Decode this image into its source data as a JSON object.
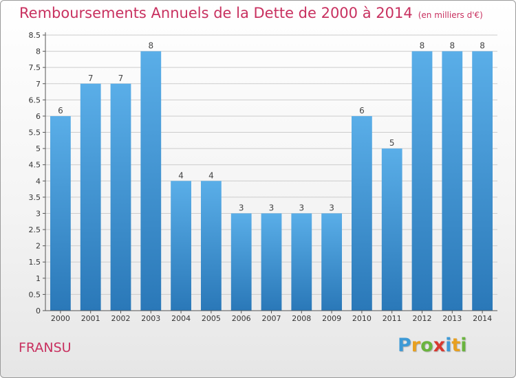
{
  "title": {
    "main": "Remboursements Annuels de la Dette de 2000 à 2014",
    "unit": "(en milliers d'€)"
  },
  "commune": "FRANSU",
  "logo": {
    "text": "Proxiti",
    "letters": [
      {
        "ch": "P",
        "color": "#3e9ad6"
      },
      {
        "ch": "r",
        "color": "#e8a020"
      },
      {
        "ch": "o",
        "color": "#6ab43e"
      },
      {
        "ch": "x",
        "color": "#d8382f"
      },
      {
        "ch": "i",
        "color": "#3e9ad6"
      },
      {
        "ch": "t",
        "color": "#e8a020"
      },
      {
        "ch": "i",
        "color": "#6ab43e"
      }
    ]
  },
  "colors": {
    "title": "#c8305f",
    "bar_top": "#5aaee8",
    "bar_bottom": "#2a78b8",
    "grid": "#cccccc",
    "axis": "#555555"
  },
  "chart_data": {
    "type": "bar",
    "categories": [
      "2000",
      "2001",
      "2002",
      "2003",
      "2004",
      "2005",
      "2006",
      "2007",
      "2008",
      "2009",
      "2010",
      "2011",
      "2012",
      "2013",
      "2014"
    ],
    "values": [
      6,
      7,
      7,
      8,
      4,
      4,
      3,
      3,
      3,
      3,
      6,
      5,
      8,
      8,
      8
    ],
    "data_labels": [
      "6",
      "7",
      "7",
      "8",
      "4",
      "4",
      "3",
      "3",
      "3",
      "3",
      "6",
      "5",
      "8",
      "8",
      "8"
    ],
    "yticks": [
      "0",
      "0.5",
      "1",
      "1.5",
      "2",
      "2.5",
      "3",
      "3.5",
      "4",
      "4.5",
      "5",
      "5.5",
      "6",
      "6.5",
      "7",
      "7.5",
      "8",
      "8.5"
    ],
    "ylim": [
      0,
      8.5
    ],
    "grid": true,
    "legend": "none"
  }
}
